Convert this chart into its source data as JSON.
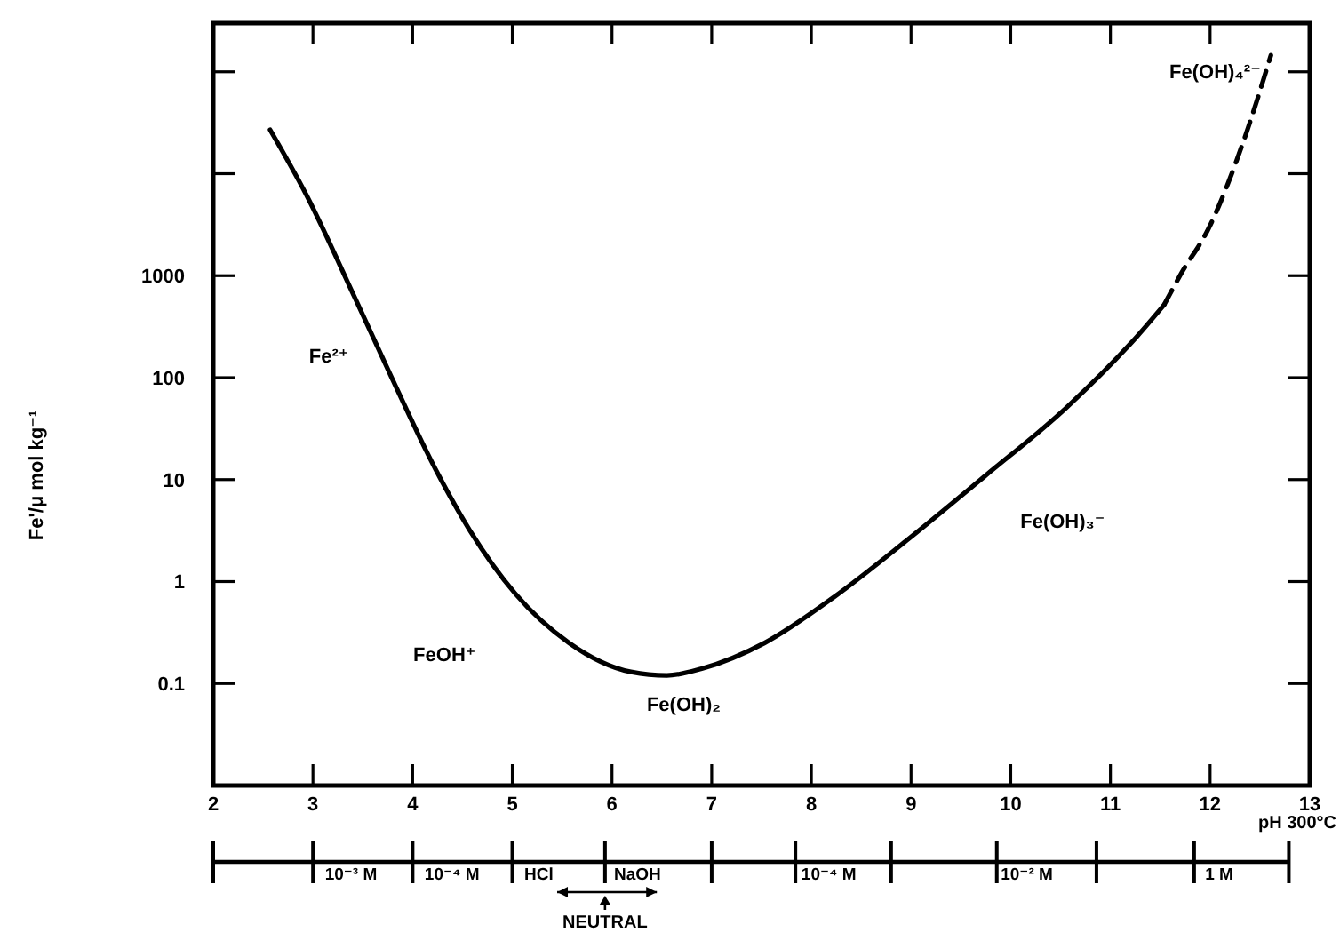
{
  "chart_data": {
    "type": "line",
    "xlabel": "pH 300°C",
    "ylabel": "Fe'/μ mol kg⁻¹",
    "log": "y",
    "grid": false,
    "marker": "none",
    "xlim": [
      2,
      13
    ],
    "xticks": [
      2,
      3,
      4,
      5,
      6,
      7,
      8,
      9,
      10,
      11,
      12,
      13
    ],
    "ylim": [
      0.01,
      300000
    ],
    "yticks": [
      0.1,
      1,
      10,
      100,
      1000,
      {
        "value": 10000,
        "label": null
      },
      {
        "value": 100000,
        "label": null
      }
    ],
    "series": [
      {
        "color": "#000000",
        "line_style": "solid",
        "x": [
          2.57,
          2.93,
          3.43,
          3.78,
          4.23,
          4.58,
          5.03,
          5.57,
          6.19,
          6.55,
          6.9,
          7.53,
          8.24,
          8.95,
          9.75,
          10.56,
          11.27,
          11.54
        ],
        "values": [
          27000,
          6300,
          580,
          105,
          12.6,
          3.1,
          0.76,
          0.25,
          0.13,
          0.12,
          0.14,
          0.25,
          0.72,
          2.5,
          11,
          51,
          256,
          520
        ]
      },
      {
        "color": "#000000",
        "line_style": "dashed",
        "x": [
          11.54,
          11.71,
          11.98,
          12.34,
          12.61
        ],
        "values": [
          520,
          1050,
          2840,
          21500,
          145000
        ]
      }
    ],
    "annotations": [
      "Fe²⁺",
      "FeOH⁺",
      "Fe(OH)₂",
      "Fe(OH)₃⁻",
      "Fe(OH)₄²⁻",
      "10⁻³ M",
      "10⁻⁴ M",
      "HCl",
      "NaOH",
      "10⁻⁴ M",
      "10⁻² M",
      "1 M",
      "NEUTRAL"
    ]
  }
}
